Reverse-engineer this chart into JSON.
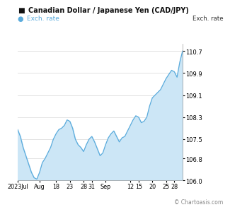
{
  "title": "Canadian Dollar / Japanese Yen (CAD/JPY)",
  "legend_label": "Exch. rate",
  "right_label": "Exch. rate",
  "yticks": [
    106.0,
    106.8,
    107.5,
    108.3,
    109.1,
    109.9,
    110.7
  ],
  "ylim": [
    106.0,
    110.95
  ],
  "x_tick_labels": [
    "2023Jul",
    "Aug",
    "18",
    "23",
    "28",
    "31",
    "Sep",
    "12",
    "15",
    "20",
    "25",
    "28"
  ],
  "watermark": "© Chartoasis.com",
  "line_color": "#5aabdc",
  "fill_color": "#cce6f6",
  "title_square_color": "#111111",
  "legend_dot_color": "#5aabdc",
  "background_color": "#ffffff",
  "grid_color": "#dddddd",
  "x_values": [
    0,
    1,
    2,
    3,
    4,
    5,
    6,
    7,
    8,
    9,
    10,
    11,
    12,
    13,
    14,
    15,
    16,
    17,
    18,
    19,
    20,
    21,
    22,
    23,
    24,
    25,
    26,
    27,
    28,
    29,
    30,
    31,
    32,
    33,
    34,
    35,
    36,
    37,
    38,
    39,
    40,
    41,
    42,
    43,
    44,
    45,
    46,
    47,
    48,
    49,
    50,
    51,
    52,
    53,
    54,
    55,
    56,
    57,
    58,
    59,
    60
  ],
  "y_values": [
    107.85,
    107.6,
    107.2,
    106.9,
    106.6,
    106.3,
    106.1,
    106.05,
    106.3,
    106.65,
    106.8,
    107.0,
    107.2,
    107.5,
    107.7,
    107.85,
    107.9,
    108.0,
    108.2,
    108.15,
    107.9,
    107.5,
    107.3,
    107.2,
    107.05,
    107.3,
    107.5,
    107.6,
    107.4,
    107.15,
    106.9,
    107.0,
    107.3,
    107.55,
    107.7,
    107.8,
    107.6,
    107.4,
    107.55,
    107.6,
    107.8,
    108.0,
    108.2,
    108.35,
    108.3,
    108.1,
    108.15,
    108.3,
    108.7,
    109.0,
    109.1,
    109.2,
    109.3,
    109.5,
    109.7,
    109.85,
    110.0,
    109.95,
    109.75,
    110.3,
    110.7
  ],
  "x_tick_positions": [
    0,
    8,
    14,
    19,
    24,
    27,
    32,
    41,
    44,
    49,
    54,
    57
  ]
}
